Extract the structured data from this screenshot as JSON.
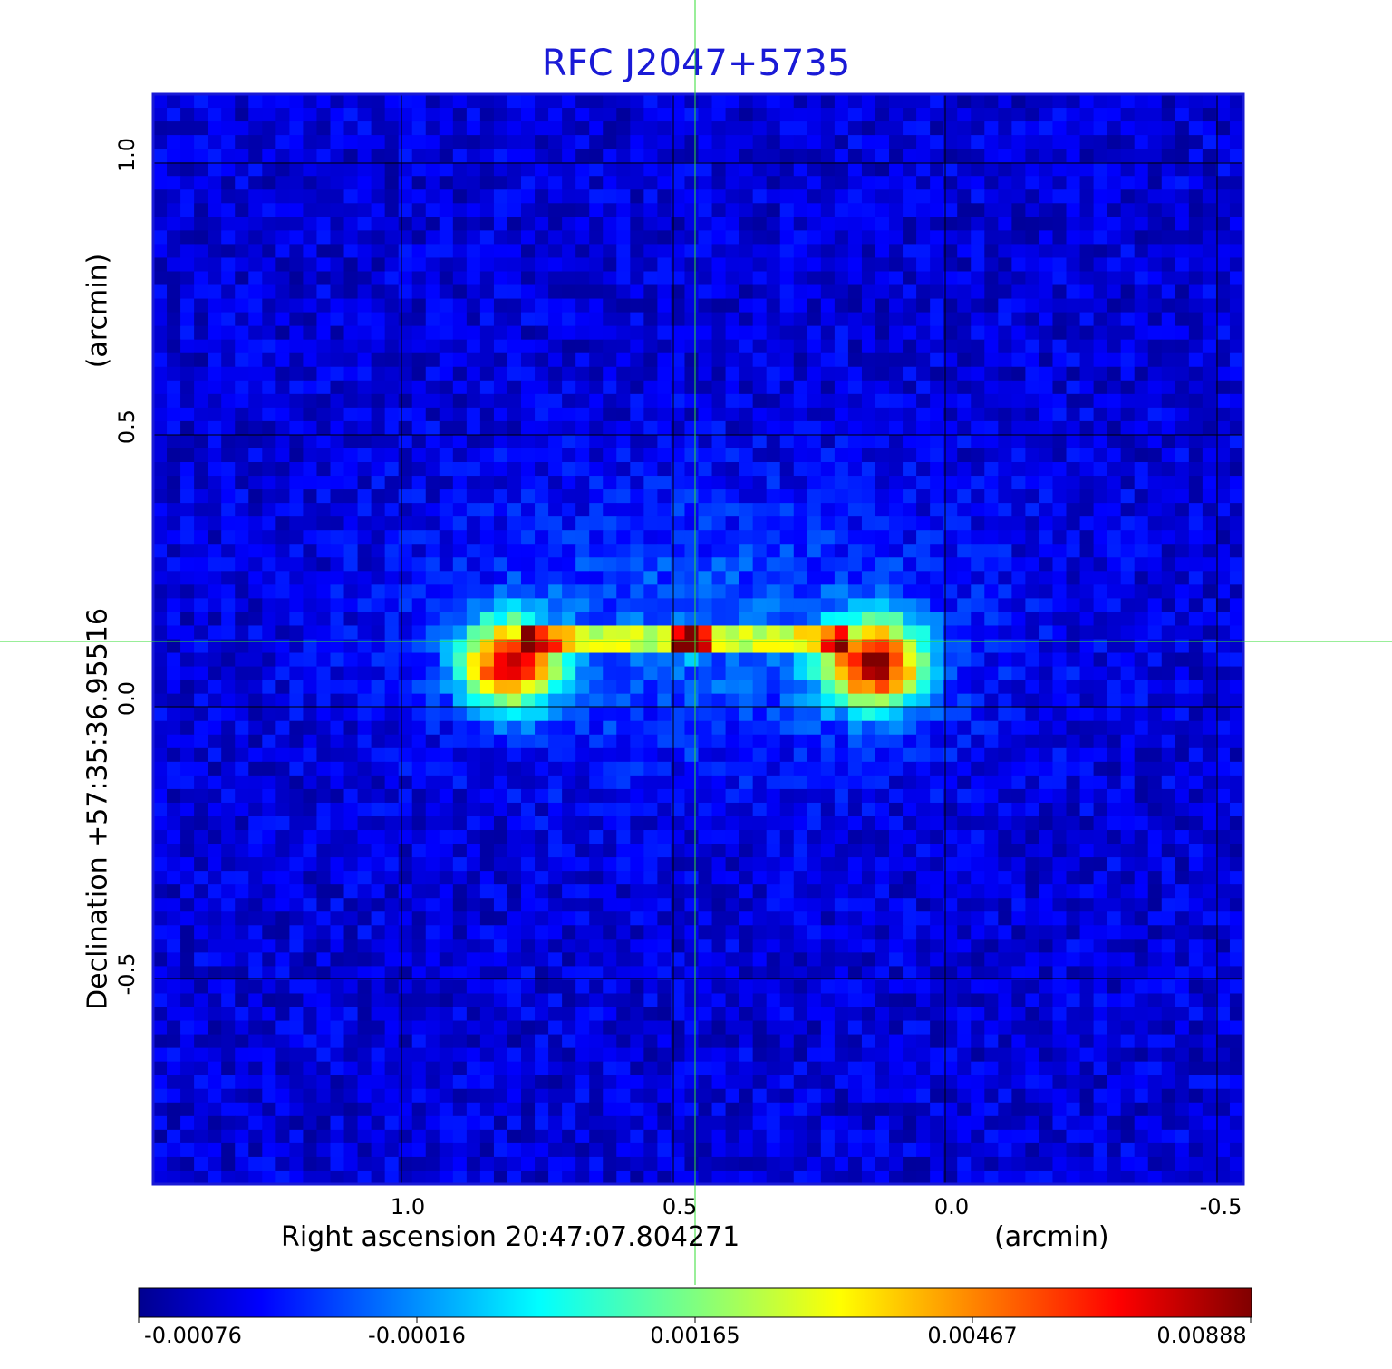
{
  "title": "RFC J2047+5735",
  "x_axis": {
    "label": "Right ascension  20:47:07.804271",
    "unit": "(arcmin)",
    "ticks": [
      "1.0",
      "0.5",
      "0.0",
      "-0.5"
    ]
  },
  "y_axis": {
    "label": "Declination  +57:35:36.95516",
    "unit": "(arcmin)",
    "ticks": [
      "1.0",
      "0.5",
      "0.0",
      "-0.5"
    ]
  },
  "colorbar": {
    "colormap": "jet",
    "ticks": [
      "-0.00076",
      "-0.00016",
      "0.00165",
      "0.00467",
      "0.00888"
    ]
  },
  "colors": {
    "title": "#1a1ad6",
    "frame": "#1a1ad6",
    "crosshair": "#33dd33",
    "grid": "#000000"
  },
  "image": {
    "description_kind": "radio image heatmap, noise background with double-lobed source",
    "features": [
      {
        "type": "lobe",
        "ra_arcmin": 0.8,
        "dec_arcmin": 0.08,
        "strength": 0.0075
      },
      {
        "type": "lobe",
        "ra_arcmin": 0.13,
        "dec_arcmin": 0.08,
        "strength": 0.0078
      },
      {
        "type": "core",
        "ra_arcmin": 0.47,
        "dec_arcmin": 0.12,
        "strength": 0.0089
      }
    ]
  }
}
